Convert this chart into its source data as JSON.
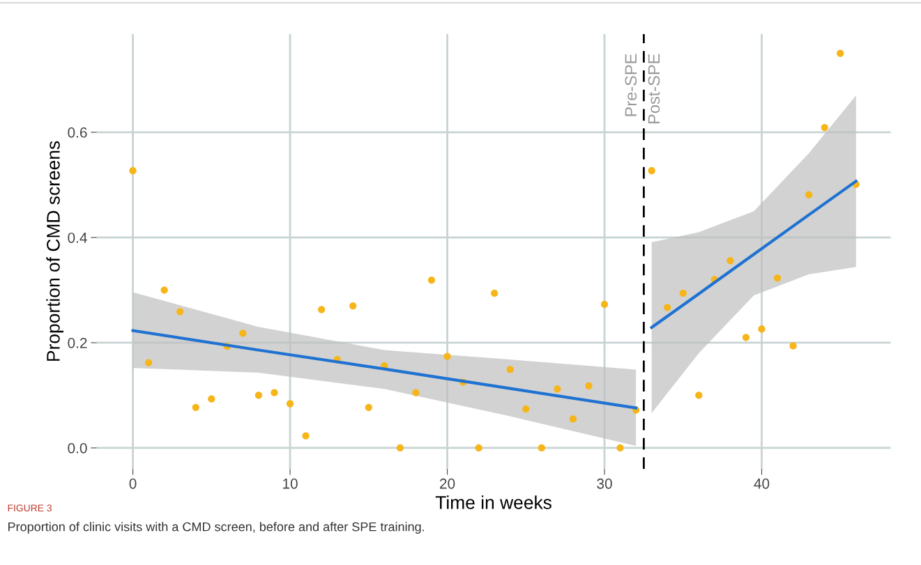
{
  "chart_data": {
    "type": "scatter",
    "xlabel": "Time in weeks",
    "ylabel": "Proportion of CMD screens",
    "x": [
      0,
      1,
      2,
      3,
      4,
      5,
      6,
      7,
      8,
      9,
      10,
      11,
      12,
      13,
      14,
      15,
      16,
      17,
      18,
      19,
      20,
      21,
      22,
      23,
      24,
      25,
      26,
      27,
      28,
      29,
      30,
      31,
      32,
      33,
      34,
      35,
      36,
      37,
      38,
      39,
      40,
      41,
      42,
      43,
      44,
      45,
      46
    ],
    "series": [
      {
        "color": "#f6b519",
        "values": [
          0.527,
          0.162,
          0.3,
          0.259,
          0.077,
          0.093,
          0.193,
          0.218,
          0.1,
          0.105,
          0.084,
          0.023,
          0.263,
          0.168,
          0.27,
          0.077,
          0.156,
          0,
          0.105,
          0.319,
          0.174,
          0.125,
          0,
          0.294,
          0.149,
          0.074,
          0,
          0.112,
          0.055,
          0.118,
          0.273,
          0,
          0.072,
          0.527,
          0.267,
          0.294,
          0.1,
          0.32,
          0.356,
          0.21,
          0.226,
          0.323,
          0.194,
          0.481,
          0.609,
          0.75,
          0.501
        ]
      },
      {
        "type": "line",
        "marker": "none",
        "color": "#1f72d1",
        "x": [
          0,
          8,
          16,
          24,
          32
        ],
        "values": [
          0.223,
          0.186,
          0.15,
          0.113,
          0.076
        ],
        "lower": [
          0.152,
          0.143,
          0.112,
          0.06,
          0.004
        ],
        "upper": [
          0.296,
          0.23,
          0.186,
          0.168,
          0.149
        ]
      },
      {
        "type": "line",
        "marker": "none",
        "color": "#1f72d1",
        "x": [
          33,
          36,
          39.5,
          43,
          46
        ],
        "values": [
          0.229,
          0.293,
          0.368,
          0.443,
          0.507
        ],
        "lower": [
          0.066,
          0.18,
          0.29,
          0.33,
          0.344
        ],
        "upper": [
          0.391,
          0.41,
          0.45,
          0.56,
          0.67
        ]
      }
    ],
    "xlim": [
      -2.3,
      48.2
    ],
    "ylim": [
      -0.04,
      0.787
    ],
    "xticks": [
      0,
      10,
      20,
      30,
      40
    ],
    "yticks": [
      {
        "value": 0,
        "label": "0.0"
      },
      {
        "value": 0.2,
        "label": "0.2"
      },
      {
        "value": 0.4,
        "label": "0.4"
      },
      {
        "value": 0.6,
        "label": "0.6"
      }
    ],
    "grid": true,
    "legend": false,
    "marker": "circle",
    "ref_lines": [
      {
        "axis": "x",
        "value": 32.5,
        "color": "#000000",
        "line_style": "dashed"
      }
    ],
    "annotations": [
      {
        "text": "Pre-SPE",
        "x": 32.5,
        "y": 0.75
      },
      {
        "text": "Post-SPE",
        "x": 32.5,
        "y": 0.75
      },
      "FIGURE 3",
      "Proportion of clinic visits with a CMD screen, before and after SPE training."
    ]
  }
}
